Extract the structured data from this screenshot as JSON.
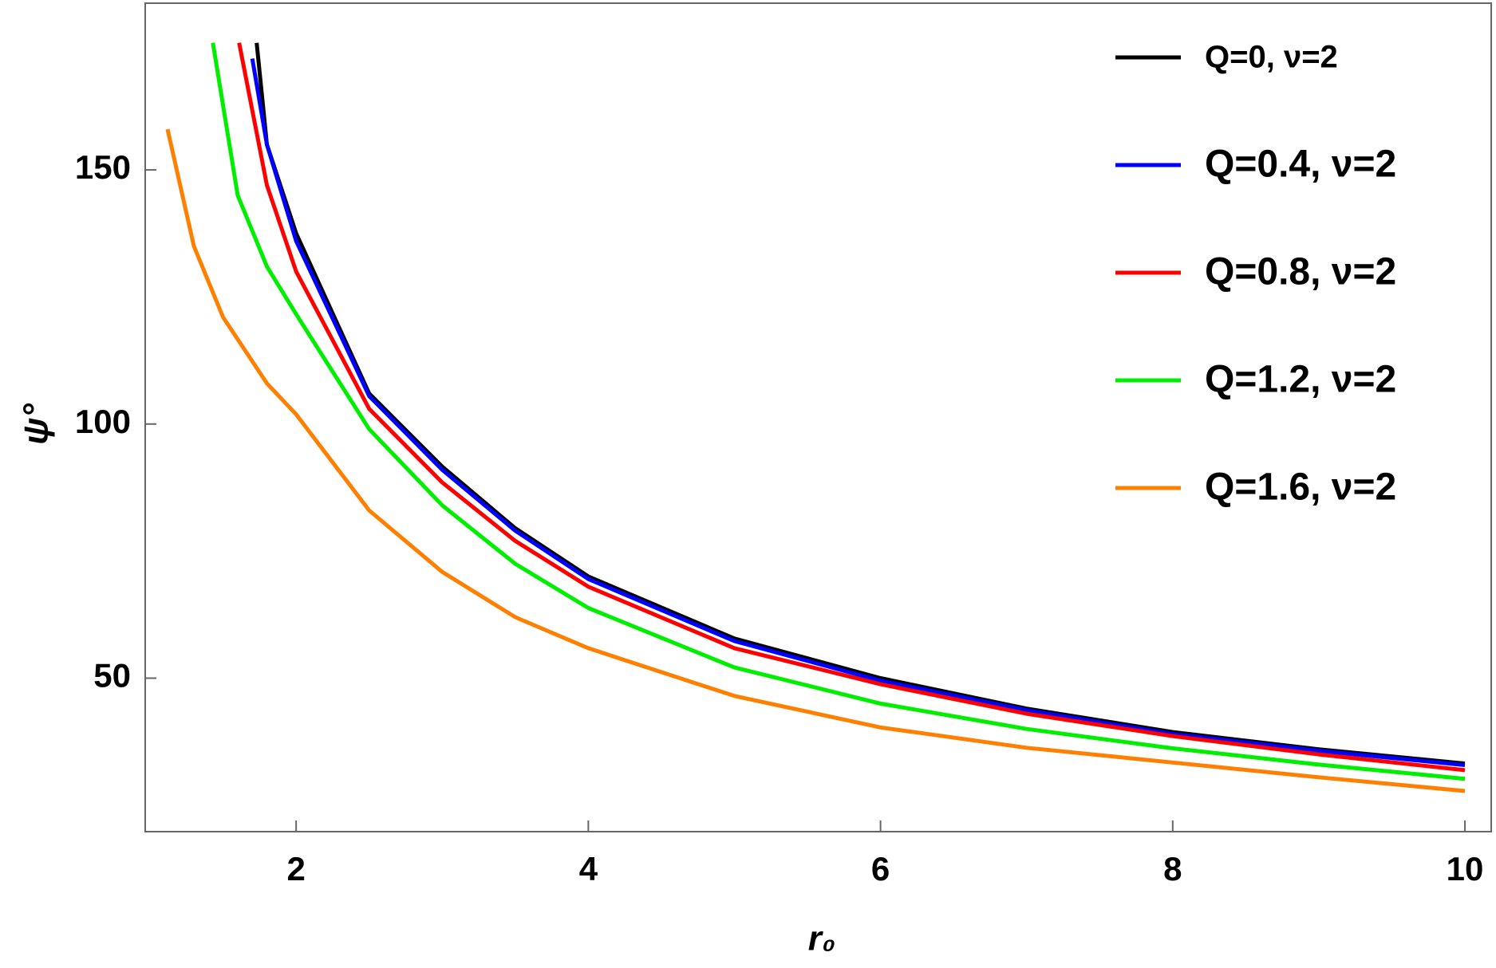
{
  "chart_data": {
    "type": "line",
    "x_label": "r₀",
    "y_label": "ψ°",
    "xlim": [
      0.967,
      10.18
    ],
    "ylim": [
      19.8,
      182.8
    ],
    "xticks": [
      2,
      4,
      6,
      8,
      10
    ],
    "yticks": [
      50,
      100,
      150
    ],
    "legend": "top-right",
    "series": [
      {
        "name": "Q=0, ν=2",
        "color": "#000000",
        "x": [
          1.73,
          1.8,
          2,
          2.5,
          3,
          3.5,
          4,
          5,
          6,
          7,
          8,
          9,
          10
        ],
        "values": [
          175,
          155,
          137.5,
          106,
          91.6,
          79.5,
          70,
          57.8,
          50,
          44,
          39.4,
          36,
          33.2
        ]
      },
      {
        "name": "Q=0.4, ν=2",
        "color": "#0000ff",
        "x": [
          1.7,
          1.8,
          2,
          2.5,
          3,
          3.5,
          4,
          5,
          6,
          7,
          8,
          9,
          10
        ],
        "values": [
          171.9,
          155,
          136,
          105.5,
          91,
          79,
          69.5,
          57.3,
          49.5,
          43.7,
          39,
          35.7,
          32.9
        ]
      },
      {
        "name": "Q=0.8, ν=2",
        "color": "#ff0000",
        "x": [
          1.61,
          1.8,
          2,
          2.5,
          3,
          3.5,
          4,
          5,
          6,
          7,
          8,
          9,
          10
        ],
        "values": [
          175,
          147,
          130,
          103,
          88.5,
          77,
          68,
          55.9,
          48.8,
          43,
          38.6,
          35,
          31.9
        ]
      },
      {
        "name": "Q=1.2, ν=2",
        "color": "#00ee00",
        "x": [
          1.43,
          1.6,
          1.8,
          2,
          2.5,
          3,
          3.5,
          4,
          5,
          6,
          7,
          8,
          9,
          10
        ],
        "values": [
          175,
          145,
          131,
          121.6,
          99,
          84,
          72.5,
          63.8,
          52.1,
          45,
          40,
          36.2,
          33,
          30.2
        ]
      },
      {
        "name": "Q=1.6, ν=2",
        "color": "#ff8000",
        "x": [
          1.12,
          1.3,
          1.5,
          1.8,
          2,
          2.5,
          3,
          3.5,
          4,
          5,
          6,
          7,
          8,
          9,
          10
        ],
        "values": [
          158,
          135,
          121,
          108,
          101.9,
          83,
          70.9,
          62,
          55.9,
          46.5,
          40.3,
          36.3,
          33.4,
          30.5,
          27.8
        ]
      }
    ]
  }
}
